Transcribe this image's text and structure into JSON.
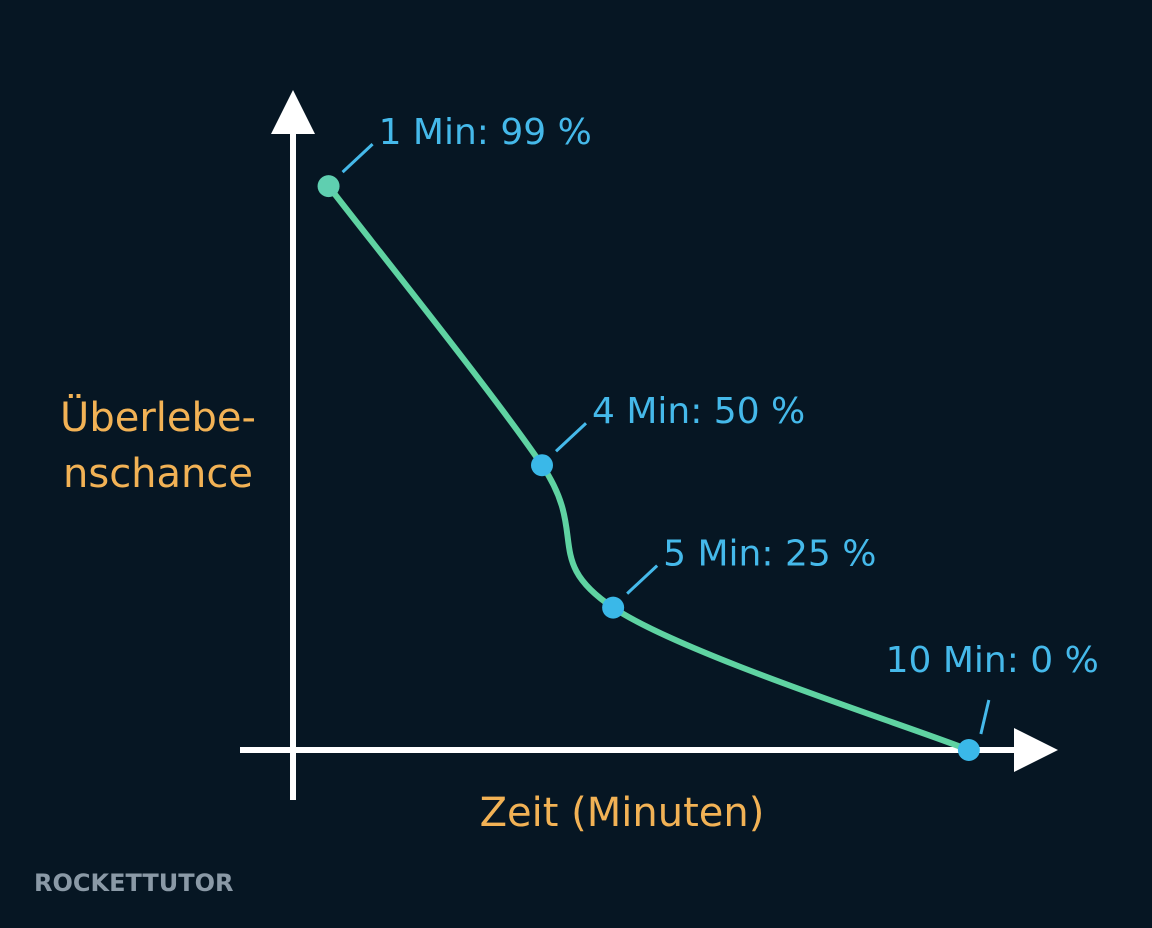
{
  "chart_data": {
    "type": "line",
    "ylabel_lines": [
      "Überlebe-",
      "nschance"
    ],
    "xlabel": "Zeit (Minuten)",
    "x": [
      1,
      4,
      5,
      10
    ],
    "values": [
      99,
      50,
      25,
      0
    ],
    "value_labels": [
      "1 Min: 99 %",
      "4 Min: 50 %",
      "5 Min: 25 %",
      "10 Min: 0 %"
    ],
    "color": "#5fd3a2",
    "point_colors": [
      "#5fcfb0",
      "#3ab8e8",
      "#3ab8e8",
      "#3ab8e8"
    ],
    "xlim": [
      0.5,
      11
    ],
    "ylim": [
      0,
      115
    ],
    "watermark": "ROCKETTUTOR"
  }
}
